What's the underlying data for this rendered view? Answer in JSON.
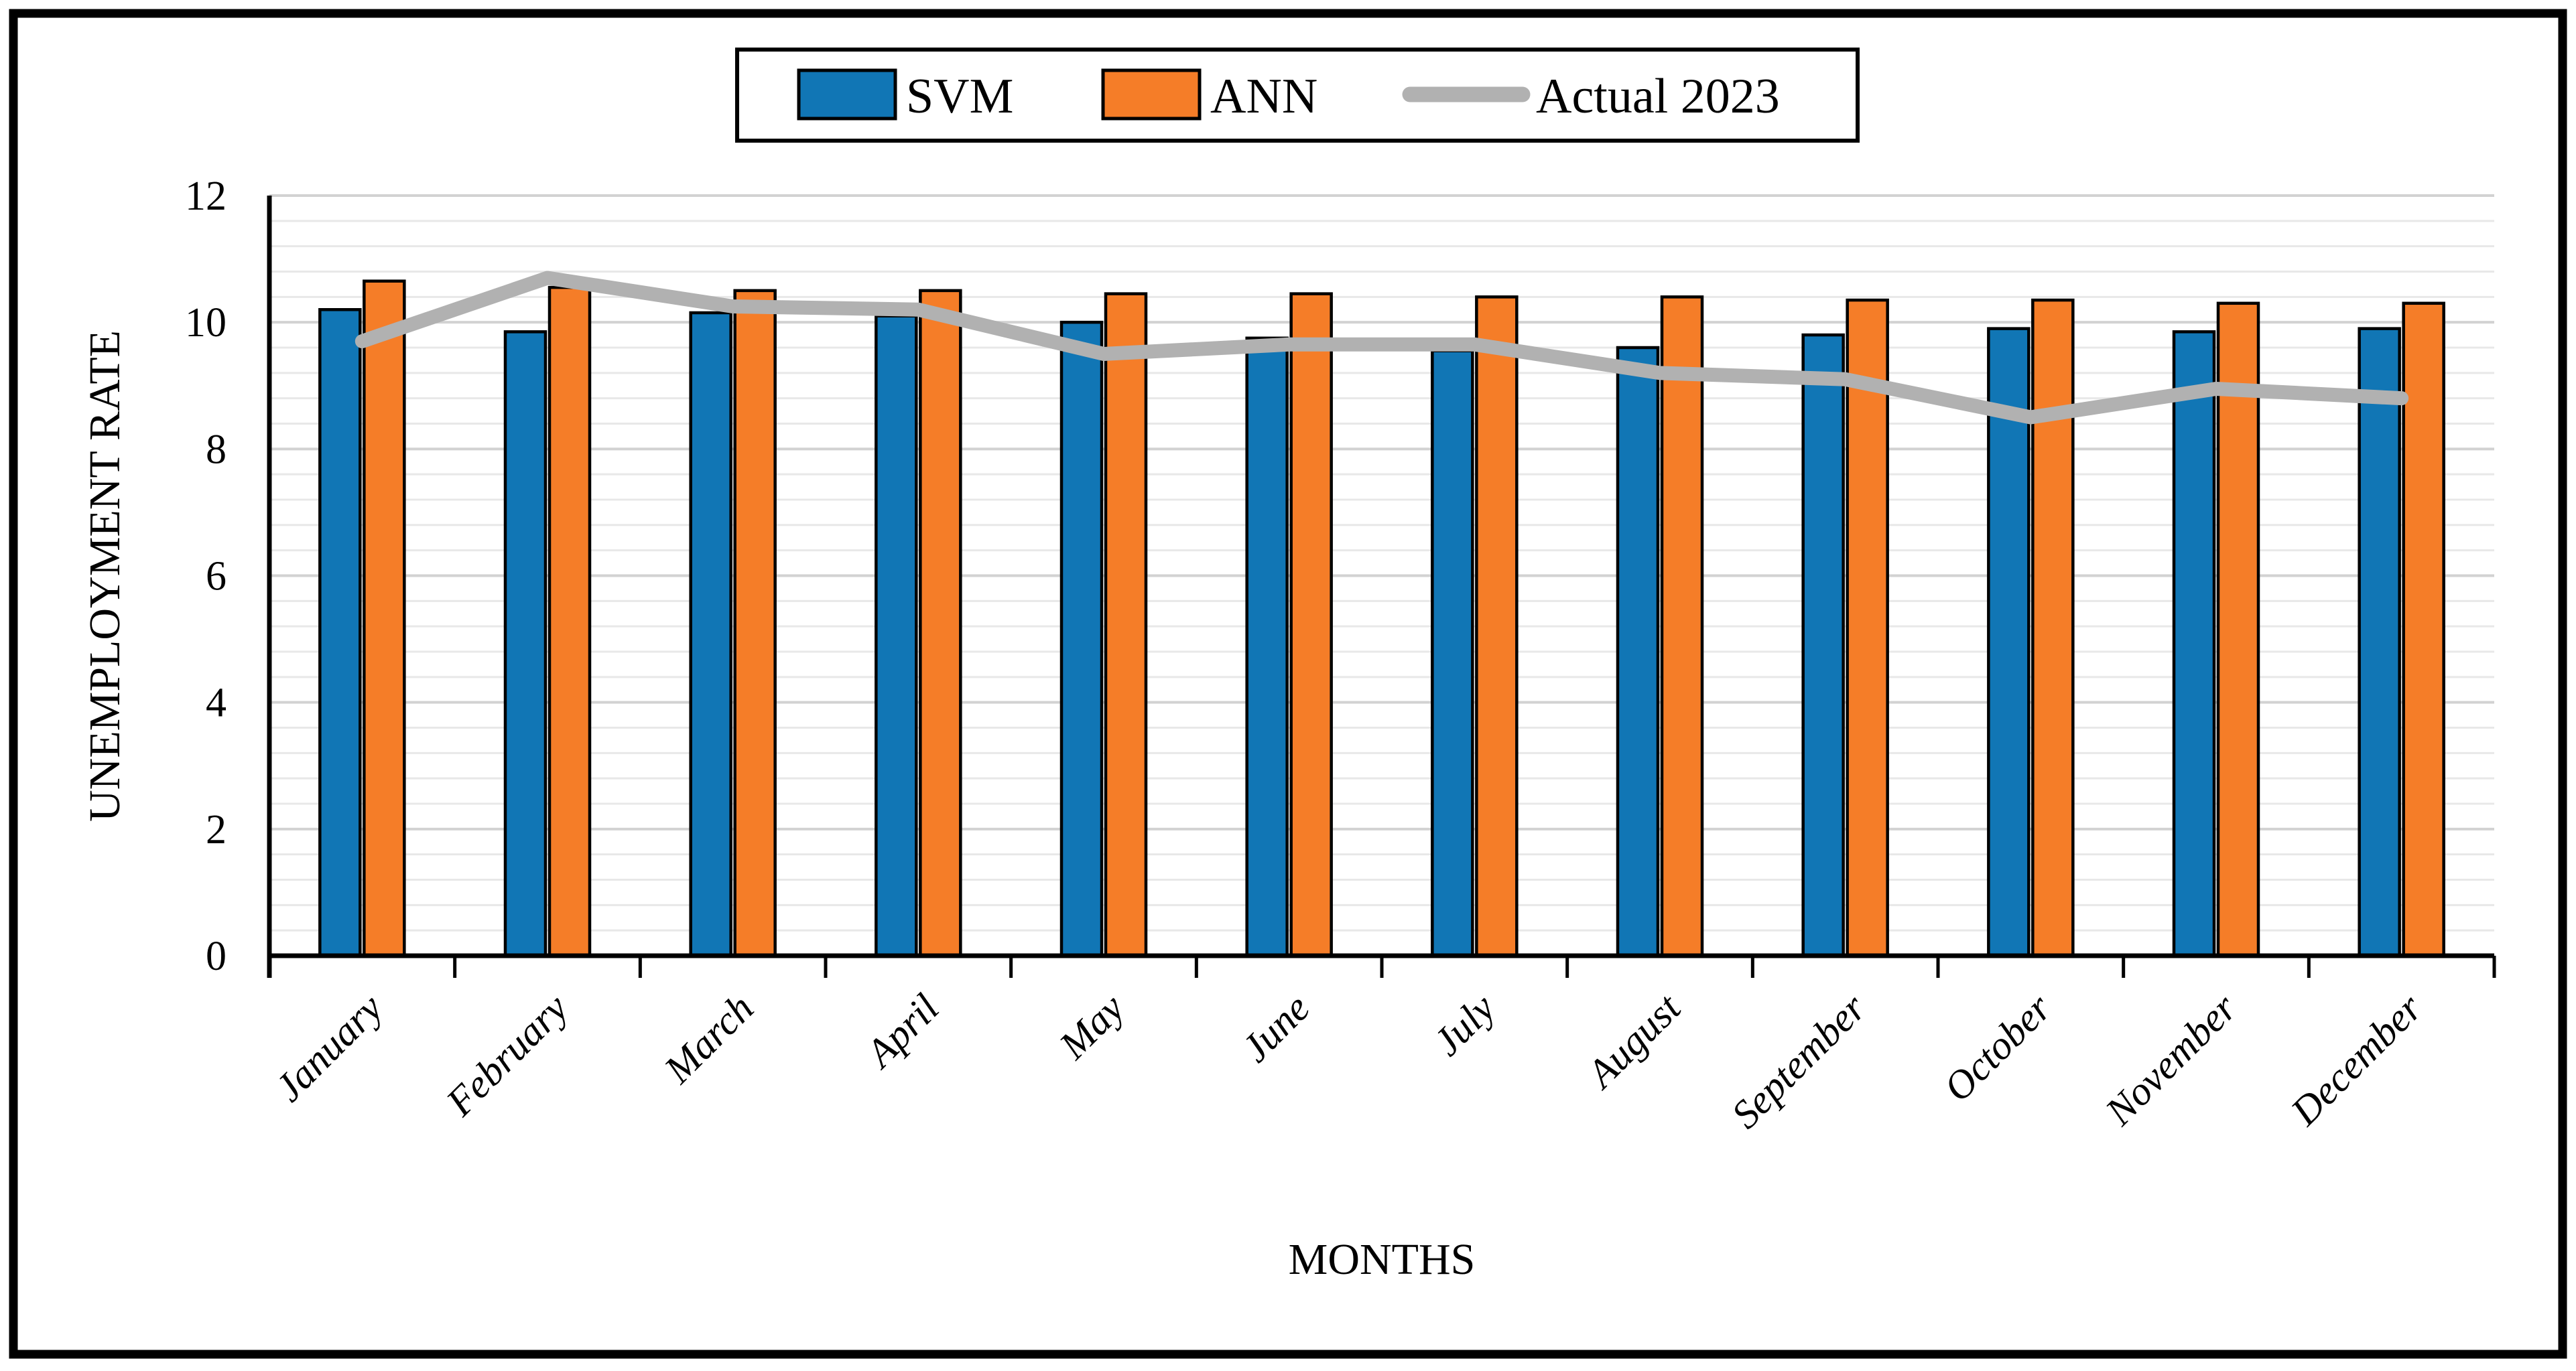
{
  "figure": {
    "background": "#ffffff",
    "border_color": "#000000"
  },
  "chart_data": {
    "type": "bar",
    "title": "",
    "categories": [
      "January",
      "February",
      "March",
      "April",
      "May",
      "June",
      "July",
      "August",
      "September",
      "October",
      "November",
      "December"
    ],
    "series": [
      {
        "name": "SVM",
        "kind": "bar",
        "color": "#1176b5",
        "values": [
          10.2,
          9.85,
          10.15,
          10.1,
          10.0,
          9.75,
          9.55,
          9.6,
          9.8,
          9.9,
          9.85,
          9.9
        ]
      },
      {
        "name": "ANN",
        "kind": "bar",
        "color": "#f57d28",
        "values": [
          10.65,
          10.55,
          10.5,
          10.5,
          10.45,
          10.45,
          10.4,
          10.4,
          10.35,
          10.35,
          10.3,
          10.3
        ]
      },
      {
        "name": "Actual 2023",
        "kind": "line",
        "color": "#b1b1b1",
        "values": [
          9.7,
          10.7,
          10.25,
          10.2,
          9.5,
          9.65,
          9.65,
          9.2,
          9.1,
          8.5,
          8.95,
          8.8
        ]
      }
    ],
    "xlabel": "MONTHS",
    "ylabel": "UNEMPLOYMENT RATE",
    "ylim": [
      0,
      12
    ],
    "ytick_step": 2,
    "yticks": [
      0,
      2,
      4,
      6,
      8,
      10,
      12
    ],
    "minor_grid_step": 0.4,
    "grid": "on",
    "legend_position": "top-center",
    "gridline_major_color": "#d2d2d2",
    "gridline_minor_color": "#e8e8e8"
  }
}
